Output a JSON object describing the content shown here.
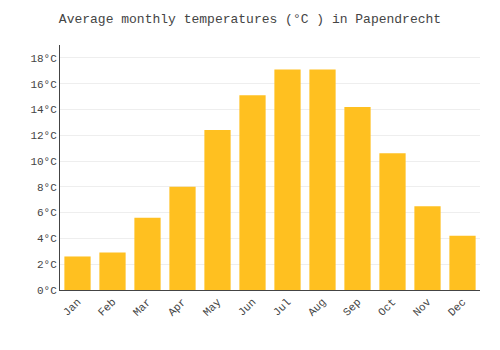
{
  "chart_data": {
    "type": "bar",
    "title": "Average monthly temperatures (°C ) in Papendrecht",
    "categories": [
      "Jan",
      "Feb",
      "Mar",
      "Apr",
      "May",
      "Jun",
      "Jul",
      "Aug",
      "Sep",
      "Oct",
      "Nov",
      "Dec"
    ],
    "values": [
      2.6,
      2.9,
      5.6,
      8.0,
      12.4,
      15.1,
      17.1,
      17.1,
      14.2,
      10.6,
      6.5,
      4.2
    ],
    "color": "#FFC020",
    "ylim": [
      0,
      19
    ],
    "yticks": [
      {
        "value": 0,
        "label": "0°C"
      },
      {
        "value": 2,
        "label": "2°C"
      },
      {
        "value": 4,
        "label": "4°C"
      },
      {
        "value": 6,
        "label": "6°C"
      },
      {
        "value": 8,
        "label": "8°C"
      },
      {
        "value": 10,
        "label": "10°C"
      },
      {
        "value": 12,
        "label": "12°C"
      },
      {
        "value": 14,
        "label": "14°C"
      },
      {
        "value": 16,
        "label": "16°C"
      },
      {
        "value": 18,
        "label": "18°C"
      }
    ],
    "grid": true
  }
}
